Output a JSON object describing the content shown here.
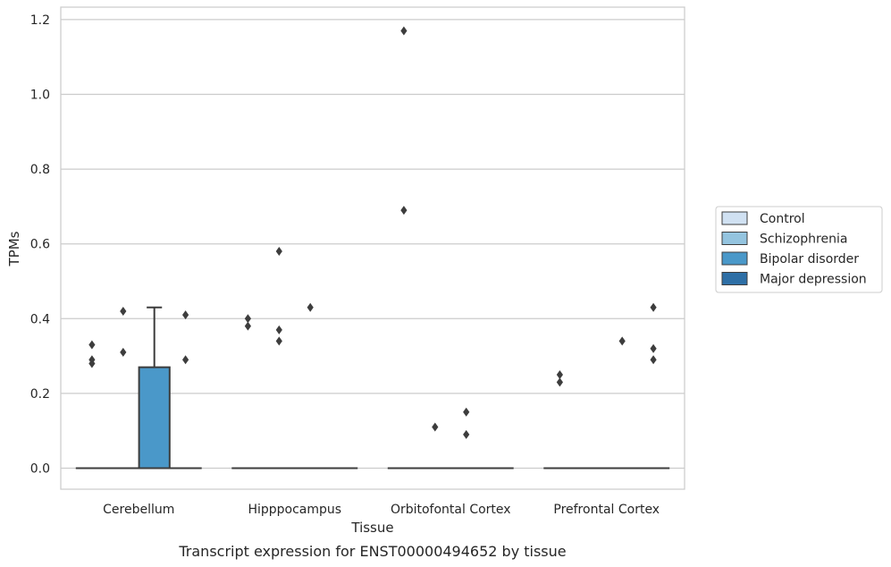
{
  "chart_data": {
    "type": "box",
    "title": "Transcript expression for ENST00000494652 by tissue",
    "xlabel": "Tissue",
    "ylabel": "TPMs",
    "ylim": [
      -0.057,
      1.23
    ],
    "yticks": [
      0.0,
      0.2,
      0.4,
      0.6,
      0.8,
      1.0,
      1.2
    ],
    "ytick_labels": [
      "0.0",
      "0.2",
      "0.4",
      "0.6",
      "0.8",
      "1.0",
      "1.2"
    ],
    "categories": [
      "Cerebellum",
      "Hipppocampus",
      "Orbitofontal Cortex",
      "Prefrontal Cortex"
    ],
    "grid": "horizontal",
    "legend_position": "right",
    "series": [
      {
        "name": "Control",
        "color": "#d0e1f2",
        "boxes": [
          {
            "q1": 0,
            "median": 0,
            "q3": 0,
            "whislo": 0,
            "whishi": 0,
            "outliers": [
              0.28,
              0.29,
              0.33
            ]
          },
          {
            "q1": 0,
            "median": 0,
            "q3": 0,
            "whislo": 0,
            "whishi": 0,
            "outliers": [
              0.38,
              0.4
            ]
          },
          {
            "q1": 0,
            "median": 0,
            "q3": 0,
            "whislo": 0,
            "whishi": 0,
            "outliers": [
              0.69,
              1.17
            ]
          },
          {
            "q1": 0,
            "median": 0,
            "q3": 0,
            "whislo": 0,
            "whishi": 0,
            "outliers": [
              0.23,
              0.25
            ]
          }
        ]
      },
      {
        "name": "Schizophrenia",
        "color": "#94c4df",
        "boxes": [
          {
            "q1": 0,
            "median": 0,
            "q3": 0,
            "whislo": 0,
            "whishi": 0,
            "outliers": [
              0.31,
              0.42
            ]
          },
          {
            "q1": 0,
            "median": 0,
            "q3": 0,
            "whislo": 0,
            "whishi": 0,
            "outliers": [
              0.34,
              0.37,
              0.58
            ]
          },
          {
            "q1": 0,
            "median": 0,
            "q3": 0,
            "whislo": 0,
            "whishi": 0,
            "outliers": [
              0.11
            ]
          },
          {
            "q1": 0,
            "median": 0,
            "q3": 0,
            "whislo": 0,
            "whishi": 0,
            "outliers": []
          }
        ]
      },
      {
        "name": "Bipolar disorder",
        "color": "#4a98c9",
        "boxes": [
          {
            "q1": 0,
            "median": 0,
            "q3": 0.27,
            "whislo": 0,
            "whishi": 0.43,
            "outliers": []
          },
          {
            "q1": 0,
            "median": 0,
            "q3": 0,
            "whislo": 0,
            "whishi": 0,
            "outliers": [
              0.43
            ]
          },
          {
            "q1": 0,
            "median": 0,
            "q3": 0,
            "whislo": 0,
            "whishi": 0,
            "outliers": [
              0.09,
              0.15
            ]
          },
          {
            "q1": 0,
            "median": 0,
            "q3": 0,
            "whislo": 0,
            "whishi": 0,
            "outliers": [
              0.34
            ]
          }
        ]
      },
      {
        "name": "Major depression",
        "color": "#2e6fa6",
        "boxes": [
          {
            "q1": 0,
            "median": 0,
            "q3": 0,
            "whislo": 0,
            "whishi": 0,
            "outliers": [
              0.29,
              0.41
            ]
          },
          {
            "q1": 0,
            "median": 0,
            "q3": 0,
            "whislo": 0,
            "whishi": 0,
            "outliers": []
          },
          {
            "q1": 0,
            "median": 0,
            "q3": 0,
            "whislo": 0,
            "whishi": 0,
            "outliers": []
          },
          {
            "q1": 0,
            "median": 0,
            "q3": 0,
            "whislo": 0,
            "whishi": 0,
            "outliers": [
              0.29,
              0.32,
              0.43
            ]
          }
        ]
      }
    ]
  }
}
